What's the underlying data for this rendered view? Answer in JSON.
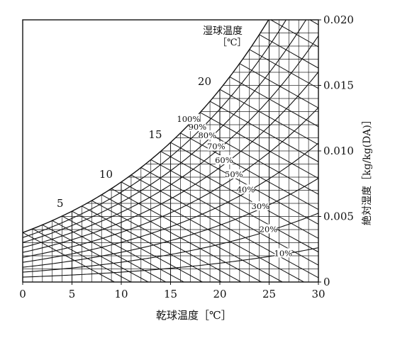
{
  "chart_data": {
    "type": "line",
    "title": "",
    "xlabel": "乾球温度［℃］",
    "ylabel": "絶対湿度［kg/kg(DA)］",
    "wet_bulb_label_line1": "湿球温度",
    "wet_bulb_label_line2": "［℃］",
    "xlim": [
      0,
      30
    ],
    "ylim": [
      0,
      0.02
    ],
    "x_ticks": [
      0,
      5,
      10,
      15,
      20,
      25,
      30
    ],
    "x_tick_labels": [
      "0",
      "5",
      "10",
      "15",
      "20",
      "25",
      "30"
    ],
    "y_ticks": [
      0,
      0.005,
      0.01,
      0.015,
      0.02
    ],
    "y_tick_labels": [
      "0",
      "0.005",
      "0.010",
      "0.015",
      "0.020"
    ],
    "grid": true,
    "relative_humidity_curves": [
      {
        "rh": 100,
        "label": "100%"
      },
      {
        "rh": 90,
        "label": "90%"
      },
      {
        "rh": 80,
        "label": "80%"
      },
      {
        "rh": 70,
        "label": "70%"
      },
      {
        "rh": 60,
        "label": "60%"
      },
      {
        "rh": 50,
        "label": "50%"
      },
      {
        "rh": 40,
        "label": "40%"
      },
      {
        "rh": 30,
        "label": "30%"
      },
      {
        "rh": 20,
        "label": "20%"
      },
      {
        "rh": 10,
        "label": "10%"
      }
    ],
    "wet_bulb_lines": [
      0,
      1,
      2,
      3,
      4,
      5,
      6,
      7,
      8,
      9,
      10,
      11,
      12,
      13,
      14,
      15,
      16,
      17,
      18,
      19,
      20,
      21,
      22,
      23,
      24,
      25,
      26,
      27
    ],
    "wet_bulb_labels": [
      {
        "t": 5,
        "label": "5"
      },
      {
        "t": 10,
        "label": "10"
      },
      {
        "t": 15,
        "label": "15"
      },
      {
        "t": 20,
        "label": "20"
      }
    ]
  }
}
